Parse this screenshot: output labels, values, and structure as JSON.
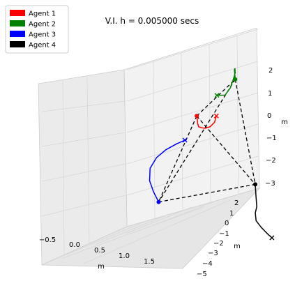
{
  "chart_data": {
    "type": "line",
    "projection": "3d",
    "title": "V.I. h = 0.005000 secs",
    "xlabel": "m",
    "ylabel": "m",
    "zlabel": "m",
    "x_ticks": [
      "−0.5",
      "0.0",
      "0.5",
      "1.0",
      "1.5"
    ],
    "y_ticks": [
      "−5",
      "−4",
      "−3",
      "−2",
      "−1",
      "0",
      "1",
      "2"
    ],
    "z_ticks": [
      "−3",
      "−2",
      "−1",
      "0",
      "1",
      "2"
    ],
    "xlim": [
      -0.7,
      1.9
    ],
    "ylim": [
      -5,
      2.8
    ],
    "zlim": [
      -3.5,
      2.6
    ],
    "grid": true,
    "legend_position": "top-left",
    "series": [
      {
        "name": "Agent 1",
        "color": "#ff0000",
        "x": [
          0.42,
          0.46,
          0.5,
          0.55,
          0.62,
          0.72,
          0.84,
          0.96,
          1.04
        ],
        "y": [
          -1.0,
          -0.8,
          -0.6,
          -0.4,
          -0.2,
          0.0,
          0.2,
          0.5,
          0.8
        ],
        "z": [
          1.2,
          0.9,
          0.55,
          0.25,
          0.05,
          -0.15,
          -0.25,
          -0.3,
          -0.25
        ]
      },
      {
        "name": "Agent 2",
        "color": "#008000",
        "x": [
          1.55,
          1.52,
          1.48,
          1.42,
          1.34,
          1.24,
          1.12,
          1.0
        ],
        "y": [
          2.0,
          1.9,
          1.6,
          1.2,
          0.9,
          0.6,
          0.4,
          0.5
        ],
        "z": [
          0.4,
          0.9,
          1.2,
          1.3,
          1.25,
          1.1,
          0.95,
          0.9
        ]
      },
      {
        "name": "Agent 3",
        "color": "#0000ff",
        "x": [
          -0.15,
          -0.22,
          -0.26,
          -0.22,
          -0.08,
          0.1,
          0.3,
          0.45
        ],
        "y": [
          -0.6,
          -0.5,
          -0.35,
          -0.15,
          0.05,
          0.2,
          0.3,
          0.4
        ],
        "z": [
          -2.8,
          -2.4,
          -2.0,
          -1.6,
          -1.3,
          -1.1,
          -0.95,
          -0.9
        ]
      },
      {
        "name": "Agent 4",
        "color": "#000000",
        "x": [
          1.2,
          1.18,
          1.16,
          1.12,
          1.1,
          1.14,
          1.2,
          1.25
        ],
        "y": [
          -2.2,
          -2.4,
          -2.6,
          -2.7,
          -2.9,
          -3.2,
          -3.5,
          -3.6
        ],
        "z": [
          -1.2,
          -1.6,
          -1.9,
          -2.1,
          -2.3,
          -2.4,
          -2.5,
          -2.6
        ]
      }
    ],
    "start_marker": "x",
    "end_marker": "o",
    "connections": "dashed black lines joining every pair of final agent positions"
  }
}
